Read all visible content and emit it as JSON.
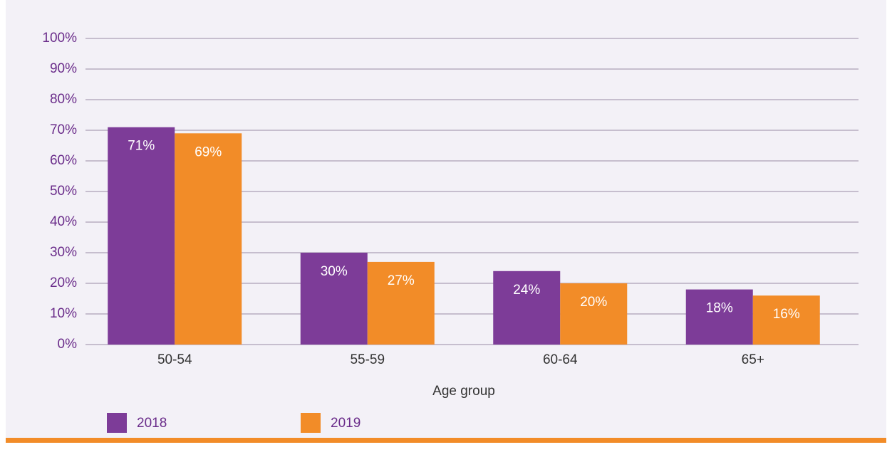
{
  "chart_data": {
    "type": "bar",
    "x_label": "Age group",
    "categories": [
      "50-54",
      "55-59",
      "60-64",
      "65+"
    ],
    "series": [
      {
        "name": "2018",
        "color": "#7d3c98",
        "values": [
          71,
          30,
          24,
          18
        ],
        "value_labels": [
          "71%",
          "30%",
          "24%",
          "18%"
        ]
      },
      {
        "name": "2019",
        "color": "#f28c28",
        "values": [
          69,
          27,
          20,
          16
        ],
        "value_labels": [
          "69%",
          "27%",
          "20%",
          "16%"
        ]
      }
    ],
    "ylim": [
      0,
      100
    ],
    "yticks": [
      {
        "value": 0,
        "label": "0%"
      },
      {
        "value": 10,
        "label": "10%"
      },
      {
        "value": 20,
        "label": "20%"
      },
      {
        "value": 30,
        "label": "30%"
      },
      {
        "value": 40,
        "label": "40%"
      },
      {
        "value": 50,
        "label": "50%"
      },
      {
        "value": 60,
        "label": "60%"
      },
      {
        "value": 70,
        "label": "70%"
      },
      {
        "value": 80,
        "label": "80%"
      },
      {
        "value": 90,
        "label": "90%"
      },
      {
        "value": 100,
        "label": "100%"
      }
    ],
    "grid": true
  }
}
